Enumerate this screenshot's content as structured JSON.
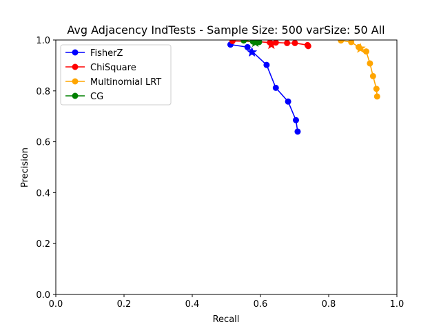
{
  "chart_data": {
    "type": "line",
    "title": "Avg Adjacency IndTests - Sample Size: 500 varSize: 50 All",
    "xlabel": "Recall",
    "ylabel": "Precision",
    "xlim": [
      0,
      1
    ],
    "ylim": [
      0,
      1
    ],
    "xticks": [
      "0.0",
      "0.2",
      "0.4",
      "0.6",
      "0.8",
      "1.0"
    ],
    "yticks": [
      "0.0",
      "0.2",
      "0.4",
      "0.6",
      "0.8",
      "1.0"
    ],
    "grid": false,
    "legend_position": "top-left",
    "series": [
      {
        "name": "FisherZ",
        "color": "#0000ff",
        "x": [
          0.512,
          0.562,
          0.618,
          0.645,
          0.681,
          0.704,
          0.709
        ],
        "y": [
          0.982,
          0.972,
          0.902,
          0.812,
          0.758,
          0.685,
          0.64
        ],
        "star": {
          "x": 0.575,
          "y": 0.952
        }
      },
      {
        "name": "ChiSquare",
        "color": "#ff0000",
        "x": [
          0.518,
          0.585,
          0.628,
          0.645,
          0.678,
          0.701,
          0.738,
          0.74
        ],
        "y": [
          0.996,
          0.994,
          0.99,
          0.99,
          0.988,
          0.988,
          0.98,
          0.976
        ],
        "star": {
          "x": 0.632,
          "y": 0.982
        }
      },
      {
        "name": "Multinomial LRT",
        "color": "#ffa500",
        "x": [
          0.836,
          0.866,
          0.888,
          0.91,
          0.921,
          0.93,
          0.94,
          0.942
        ],
        "y": [
          0.998,
          0.992,
          0.972,
          0.955,
          0.908,
          0.858,
          0.808,
          0.778
        ],
        "star": {
          "x": 0.893,
          "y": 0.967
        }
      },
      {
        "name": "CG",
        "color": "#008000",
        "x": [
          0.551,
          0.578,
          0.59,
          0.596
        ],
        "y": [
          0.998,
          0.994,
          0.993,
          0.992
        ],
        "star": {
          "x": 0.585,
          "y": 0.99
        }
      }
    ]
  }
}
